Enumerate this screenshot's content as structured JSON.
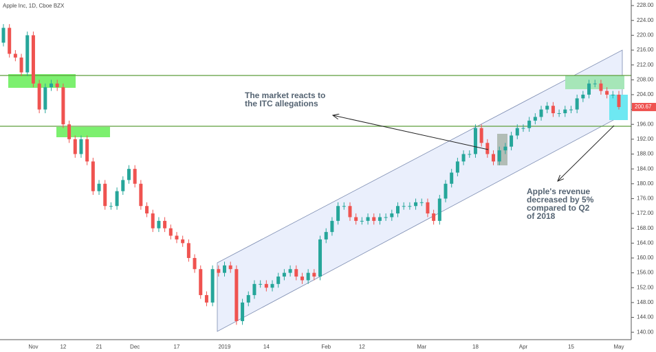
{
  "chart_data": {
    "type": "candlestick",
    "title": "Apple Inc, 1D, Cboe BZX",
    "up_color": "#26a69a",
    "down_color": "#ef5350",
    "last_price": 200.67,
    "ylim": [
      138,
      229.5
    ],
    "yticks": [
      {
        "value": 140,
        "label": "140.00"
      },
      {
        "value": 144,
        "label": "144.00"
      },
      {
        "value": 148,
        "label": "148.00"
      },
      {
        "value": 152,
        "label": "152.00"
      },
      {
        "value": 156,
        "label": "156.00"
      },
      {
        "value": 160,
        "label": "160.00"
      },
      {
        "value": 164,
        "label": "164.00"
      },
      {
        "value": 168,
        "label": "168.00"
      },
      {
        "value": 172,
        "label": "172.00"
      },
      {
        "value": 176,
        "label": "176.00"
      },
      {
        "value": 180,
        "label": "180.00"
      },
      {
        "value": 184,
        "label": "184.00"
      },
      {
        "value": 188,
        "label": "188.00"
      },
      {
        "value": 192,
        "label": "192.00"
      },
      {
        "value": 196,
        "label": "196.00"
      },
      {
        "value": 200,
        "label": "200.00"
      },
      {
        "value": 204,
        "label": "204.00"
      },
      {
        "value": 208,
        "label": "208.00"
      },
      {
        "value": 212,
        "label": "212.00"
      },
      {
        "value": 216,
        "label": "216.00"
      },
      {
        "value": 220,
        "label": "220.00"
      },
      {
        "value": 224,
        "label": "224.00"
      },
      {
        "value": 228,
        "label": "228.00"
      }
    ],
    "categories": [
      null,
      null,
      null,
      null,
      null,
      "Nov",
      null,
      null,
      null,
      null,
      "12",
      null,
      null,
      null,
      null,
      null,
      "21",
      null,
      null,
      null,
      null,
      null,
      "Dec",
      null,
      null,
      null,
      null,
      null,
      null,
      "17",
      null,
      null,
      null,
      null,
      null,
      null,
      null,
      "2019",
      null,
      null,
      null,
      null,
      null,
      null,
      "14",
      null,
      null,
      null,
      null,
      null,
      null,
      null,
      null,
      null,
      "Feb",
      null,
      null,
      null,
      null,
      null,
      "12",
      null,
      null,
      null,
      null,
      null,
      null,
      null,
      null,
      null,
      "Mar",
      null,
      null,
      null,
      null,
      null,
      null,
      null,
      null,
      "18",
      null,
      null,
      null,
      null,
      null,
      null,
      null,
      "Apr",
      null,
      null,
      null,
      null,
      null,
      null,
      null,
      "15",
      null,
      null,
      null,
      null,
      null,
      null,
      null,
      "May"
    ],
    "ohlc": [
      [
        218,
        223,
        217,
        222
      ],
      [
        222,
        223,
        214,
        215
      ],
      [
        215,
        216,
        213,
        214
      ],
      [
        214,
        215,
        209,
        210
      ],
      [
        210,
        221,
        209,
        220
      ],
      [
        220,
        221,
        206,
        207
      ],
      [
        207,
        208,
        199,
        200
      ],
      [
        200,
        207,
        199,
        206
      ],
      [
        206,
        208,
        205,
        207
      ],
      [
        207,
        208,
        205,
        206
      ],
      [
        206,
        207,
        195,
        196
      ],
      [
        196,
        197,
        191,
        192
      ],
      [
        192,
        193,
        187,
        188
      ],
      [
        188,
        193,
        187,
        192
      ],
      [
        192,
        193,
        185,
        186
      ],
      [
        186,
        187,
        177,
        178
      ],
      [
        178,
        181,
        177,
        180
      ],
      [
        180,
        181,
        173,
        174
      ],
      [
        174,
        175,
        173,
        174
      ],
      [
        174,
        179,
        173,
        178
      ],
      [
        178,
        182,
        177,
        181
      ],
      [
        181,
        185,
        180,
        184
      ],
      [
        184,
        185,
        179,
        180
      ],
      [
        180,
        181,
        173,
        174
      ],
      [
        174,
        175,
        171,
        172
      ],
      [
        172,
        173,
        167,
        168
      ],
      [
        168,
        171,
        167,
        170
      ],
      [
        170,
        171,
        167,
        168
      ],
      [
        168,
        169,
        165,
        166
      ],
      [
        166,
        167,
        164,
        165
      ],
      [
        165,
        166,
        163,
        164
      ],
      [
        164,
        165,
        159,
        160
      ],
      [
        160,
        161,
        156,
        157
      ],
      [
        157,
        158,
        149,
        150
      ],
      [
        150,
        151,
        147,
        148
      ],
      [
        148,
        158,
        147,
        157
      ],
      [
        157,
        158,
        155,
        156
      ],
      [
        156,
        159,
        155,
        158
      ],
      [
        158,
        159,
        156,
        157
      ],
      [
        157,
        158,
        142,
        143
      ],
      [
        143,
        149,
        142,
        148
      ],
      [
        148,
        151,
        147,
        150
      ],
      [
        150,
        154,
        149,
        153
      ],
      [
        153,
        154,
        152,
        153
      ],
      [
        153,
        154,
        151,
        152
      ],
      [
        152,
        154,
        151,
        153
      ],
      [
        153,
        156,
        152,
        155
      ],
      [
        155,
        157,
        154,
        156
      ],
      [
        156,
        158,
        155,
        157
      ],
      [
        157,
        158,
        154,
        155
      ],
      [
        155,
        156,
        153,
        154
      ],
      [
        154,
        157,
        153,
        156
      ],
      [
        156,
        157,
        154,
        155
      ],
      [
        155,
        166,
        154,
        165
      ],
      [
        165,
        168,
        164,
        167
      ],
      [
        167,
        171,
        166,
        170
      ],
      [
        170,
        175,
        169,
        174
      ],
      [
        174,
        175,
        173,
        174
      ],
      [
        174,
        175,
        170,
        171
      ],
      [
        171,
        172,
        169,
        170
      ],
      [
        170,
        171,
        169,
        170
      ],
      [
        170,
        172,
        169,
        171
      ],
      [
        171,
        172,
        169,
        170
      ],
      [
        170,
        172,
        169,
        171
      ],
      [
        171,
        172,
        170,
        171
      ],
      [
        171,
        173,
        170,
        172
      ],
      [
        172,
        175,
        171,
        174
      ],
      [
        174,
        175,
        173,
        174
      ],
      [
        174,
        175,
        173,
        174
      ],
      [
        174,
        176,
        173,
        175
      ],
      [
        175,
        176,
        174,
        175
      ],
      [
        175,
        176,
        171,
        172
      ],
      [
        172,
        173,
        169,
        170
      ],
      [
        170,
        177,
        169,
        176
      ],
      [
        176,
        181,
        175,
        180
      ],
      [
        180,
        184,
        179,
        183
      ],
      [
        183,
        187,
        182,
        186
      ],
      [
        186,
        189,
        185,
        188
      ],
      [
        188,
        189,
        187,
        188
      ],
      [
        188,
        196,
        187,
        195
      ],
      [
        195,
        196,
        190,
        191
      ],
      [
        191,
        192,
        187,
        188
      ],
      [
        188,
        189,
        185,
        186
      ],
      [
        186,
        190,
        185,
        189
      ],
      [
        189,
        191,
        188,
        190
      ],
      [
        190,
        194,
        189,
        193
      ],
      [
        193,
        196,
        192,
        195
      ],
      [
        195,
        196,
        194,
        195
      ],
      [
        195,
        198,
        194,
        197
      ],
      [
        197,
        199,
        196,
        198
      ],
      [
        198,
        201,
        197,
        200
      ],
      [
        200,
        202,
        199,
        201
      ],
      [
        201,
        202,
        198,
        199
      ],
      [
        199,
        200,
        198,
        199
      ],
      [
        199,
        201,
        198,
        200
      ],
      [
        200,
        201,
        199,
        200
      ],
      [
        200,
        204,
        199,
        203
      ],
      [
        203,
        205,
        202,
        204
      ],
      [
        204,
        208,
        203,
        207
      ],
      [
        207,
        208,
        206,
        207
      ],
      [
        207,
        208,
        204,
        205
      ],
      [
        205,
        206,
        203,
        204
      ],
      [
        204,
        205,
        203,
        204
      ],
      [
        204,
        205,
        200,
        200.67
      ]
    ],
    "annotations": [
      {
        "lines": [
          "The market reacts to",
          "the ITC allegations"
        ]
      },
      {
        "lines": [
          "Apple's revenue",
          "decreased by 5%",
          "compared to Q2",
          "of 2018"
        ]
      }
    ]
  }
}
